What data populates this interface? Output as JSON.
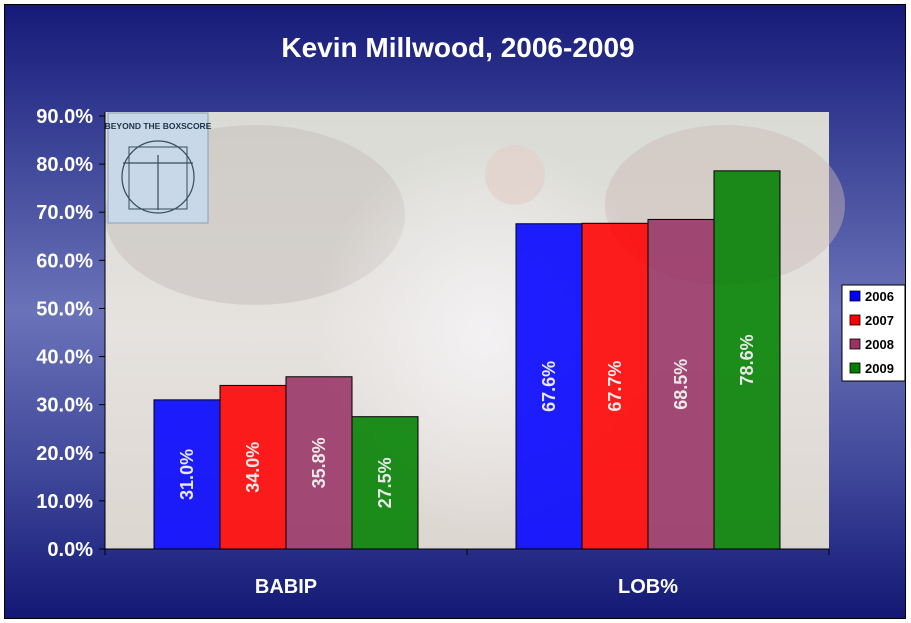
{
  "chart_data": {
    "type": "bar",
    "title": "Kevin Millwood, 2006-2009",
    "xlabel": "",
    "ylabel": "",
    "categories": [
      "BABIP",
      "LOB%"
    ],
    "series": [
      {
        "name": "2006",
        "color": "#0000ff",
        "values": [
          31.0,
          67.6
        ],
        "labels": [
          "31.0%",
          "67.6%"
        ]
      },
      {
        "name": "2007",
        "color": "#ff0000",
        "values": [
          34.0,
          67.7
        ],
        "labels": [
          "34.0%",
          "67.7%"
        ]
      },
      {
        "name": "2008",
        "color": "#993366",
        "values": [
          35.8,
          68.5
        ],
        "labels": [
          "35.8%",
          "68.5%"
        ]
      },
      {
        "name": "2009",
        "color": "#008000",
        "values": [
          27.5,
          78.6
        ],
        "labels": [
          "27.5%",
          "78.6%"
        ]
      }
    ],
    "ylim": [
      0,
      90
    ],
    "yticks": [
      0,
      10,
      20,
      30,
      40,
      50,
      60,
      70,
      80,
      90
    ],
    "ytick_labels": [
      "0.0%",
      "10.0%",
      "20.0%",
      "30.0%",
      "40.0%",
      "50.0%",
      "60.0%",
      "70.0%",
      "80.0%",
      "90.0%"
    ],
    "grid": false,
    "legend_position": "right",
    "logo_text": "BEYOND THE BOXSCORE"
  }
}
